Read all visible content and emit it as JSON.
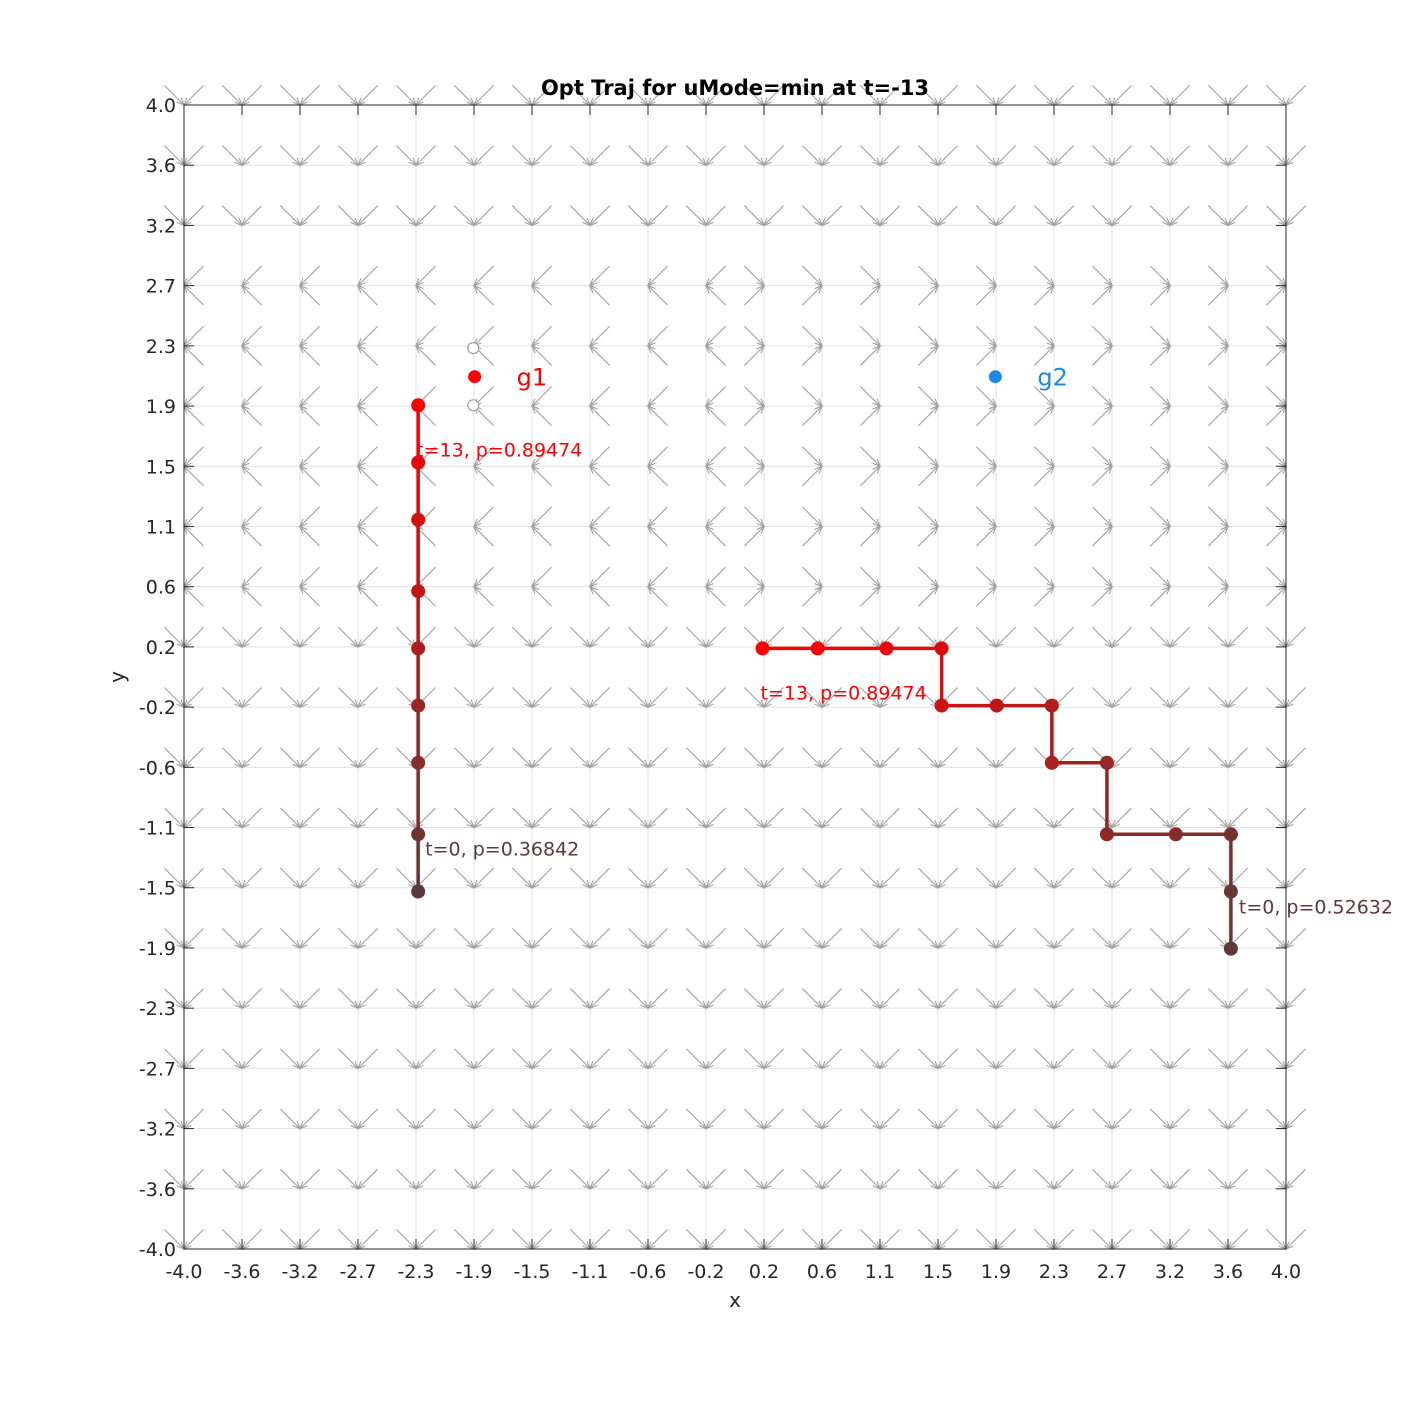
{
  "chart_data": {
    "type": "line",
    "title": "Opt Traj for uMode=min at t=-13",
    "xlabel": "x",
    "ylabel": "y",
    "xlim": [
      -4.0,
      4.0
    ],
    "ylim": [
      -4.0,
      4.0
    ],
    "grid": true,
    "x_tick_labels": [
      "-4.0",
      "-3.6",
      "-3.2",
      "-2.7",
      "-2.3",
      "-1.9",
      "-1.5",
      "-1.1",
      "-0.6",
      "-0.2",
      "0.2",
      "0.6",
      "1.1",
      "1.5",
      "1.9",
      "2.3",
      "2.7",
      "3.2",
      "3.6",
      "4.0"
    ],
    "y_tick_labels": [
      "-4.0",
      "-3.6",
      "-3.2",
      "-2.7",
      "-2.3",
      "-1.9",
      "-1.5",
      "-1.1",
      "-0.6",
      "-0.2",
      "0.2",
      "0.6",
      "1.1",
      "1.5",
      "1.9",
      "2.3",
      "2.7",
      "3.2",
      "3.6",
      "4.0"
    ],
    "colors": {
      "start": "#5c3a3a",
      "end": "#ff0000",
      "arrow": "#a0a0a0",
      "grid": "#e0e0e0",
      "g2": "#1e88e5",
      "g1": "#ff0000"
    },
    "goals": [
      {
        "name": "g1",
        "x": -1.89,
        "y": 2.1,
        "color": "#ff0000"
      },
      {
        "name": "g2",
        "x": 1.89,
        "y": 2.1,
        "color": "#1e88e5"
      }
    ],
    "open_markers": [
      {
        "x": -1.9,
        "y": 2.3
      },
      {
        "x": -1.9,
        "y": 1.9
      }
    ],
    "series": [
      {
        "points": [
          {
            "x": -2.3,
            "y": -1.5
          },
          {
            "x": -2.3,
            "y": -1.1
          },
          {
            "x": -2.3,
            "y": -0.6
          },
          {
            "x": -2.3,
            "y": -0.2
          },
          {
            "x": -2.3,
            "y": 0.2
          },
          {
            "x": -2.3,
            "y": 0.6
          },
          {
            "x": -2.3,
            "y": 1.1
          },
          {
            "x": -2.3,
            "y": 1.5
          },
          {
            "x": -2.3,
            "y": 1.9
          }
        ],
        "start_label": "t=0, p=0.36842",
        "end_label": "t=13, p=0.89474"
      },
      {
        "points": [
          {
            "x": 3.6,
            "y": -1.9
          },
          {
            "x": 3.6,
            "y": -1.5
          },
          {
            "x": 3.6,
            "y": -1.1
          },
          {
            "x": 3.2,
            "y": -1.1
          },
          {
            "x": 2.7,
            "y": -1.1
          },
          {
            "x": 2.7,
            "y": -0.6
          },
          {
            "x": 2.3,
            "y": -0.6
          },
          {
            "x": 2.3,
            "y": -0.2
          },
          {
            "x": 1.9,
            "y": -0.2
          },
          {
            "x": 1.5,
            "y": -0.2
          },
          {
            "x": 1.5,
            "y": 0.2
          },
          {
            "x": 1.1,
            "y": 0.2
          },
          {
            "x": 0.6,
            "y": 0.2
          },
          {
            "x": 0.2,
            "y": 0.2
          }
        ],
        "start_label": "t=0, p=0.52632",
        "end_label": "t=13, p=0.89474"
      }
    ],
    "vector_field": {
      "description": "quiver of gray arrows at every grid node; direction set per region",
      "grid_x": [
        -4.0,
        -3.6,
        -3.2,
        -2.7,
        -2.3,
        -1.9,
        -1.5,
        -1.1,
        -0.6,
        -0.2,
        0.2,
        0.6,
        1.1,
        1.5,
        1.9,
        2.3,
        2.7,
        3.2,
        3.6,
        4.0
      ],
      "grid_y": [
        -4.0,
        -3.6,
        -3.2,
        -2.7,
        -2.3,
        -1.9,
        -1.5,
        -1.1,
        -0.6,
        -0.2,
        0.2,
        0.6,
        1.1,
        1.5,
        1.9,
        2.3,
        2.7,
        3.2,
        3.6,
        4.0
      ]
    }
  }
}
